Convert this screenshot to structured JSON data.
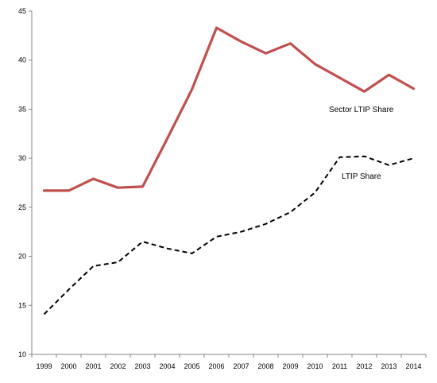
{
  "chart_data": {
    "type": "line",
    "title": "",
    "xlabel": "",
    "ylabel": "",
    "categories": [
      "1999",
      "2000",
      "2001",
      "2002",
      "2003",
      "2004",
      "2005",
      "2006",
      "2007",
      "2008",
      "2009",
      "2010",
      "2011",
      "2012",
      "2013",
      "2014"
    ],
    "y_ticks": [
      "10",
      "15",
      "20",
      "25",
      "30",
      "35",
      "40",
      "45"
    ],
    "ylim": [
      10,
      45
    ],
    "grid": false,
    "legend": "none",
    "series": [
      {
        "name": "Sector LTIP Share",
        "values": [
          26.7,
          26.7,
          27.9,
          27.0,
          27.1,
          32.0,
          37.0,
          43.3,
          41.9,
          40.7,
          41.7,
          39.6,
          38.2,
          36.8,
          38.5,
          37.1
        ],
        "color": "#C0504D",
        "style": "solid"
      },
      {
        "name": "LTIP Share",
        "values": [
          14.1,
          16.6,
          19.0,
          19.4,
          21.5,
          20.8,
          20.3,
          22.0,
          22.5,
          23.3,
          24.5,
          26.5,
          30.1,
          30.2,
          29.3,
          30.0
        ],
        "color": "#000000",
        "style": "dashed"
      }
    ],
    "annotations": [
      {
        "text": "Sector LTIP Share",
        "series": 0
      },
      {
        "text": "LTIP Share",
        "series": 1
      }
    ]
  }
}
